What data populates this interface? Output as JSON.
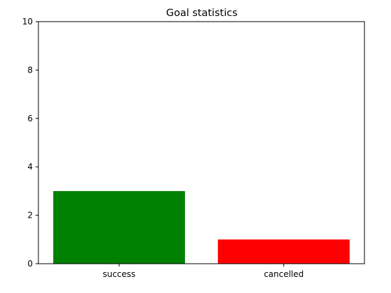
{
  "chart_data": {
    "type": "bar",
    "title": "Goal statistics",
    "xlabel": "",
    "ylabel": "",
    "categories": [
      "success",
      "cancelled"
    ],
    "values": [
      3,
      1
    ],
    "colors": [
      "#008000",
      "#ff0000"
    ],
    "ylim": [
      0,
      10
    ],
    "yticks": [
      "0",
      "2",
      "4",
      "6",
      "8",
      "10"
    ],
    "grid": false,
    "legend": "none"
  }
}
